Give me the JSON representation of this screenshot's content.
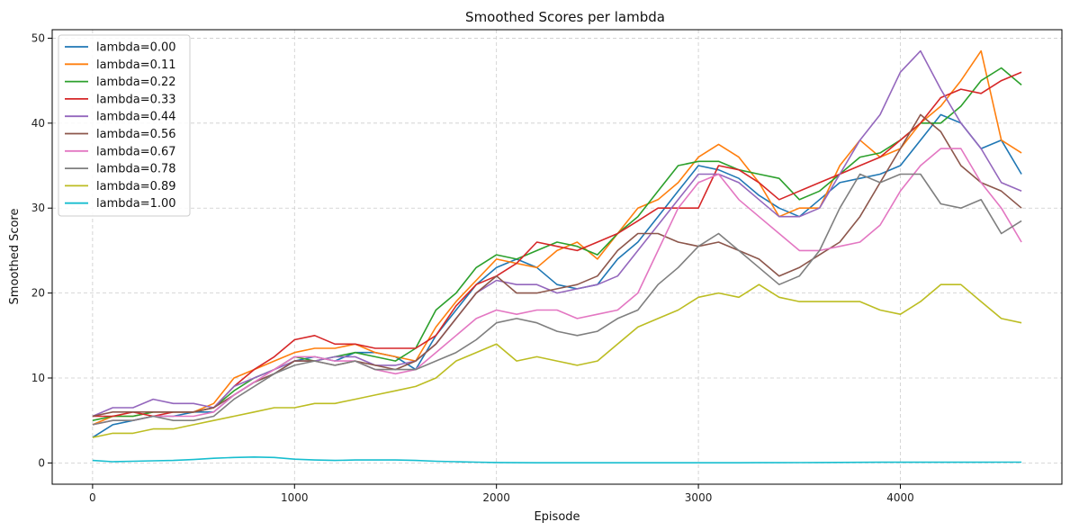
{
  "chart_data": {
    "type": "line",
    "title": "Smoothed Scores per lambda",
    "xlabel": "Episode",
    "ylabel": "Smoothed Score",
    "xlim": [
      -200,
      4800
    ],
    "ylim": [
      -2.5,
      51
    ],
    "xticks": [
      0,
      1000,
      2000,
      3000,
      4000
    ],
    "yticks": [
      0,
      10,
      20,
      30,
      40,
      50
    ],
    "grid": true,
    "legend_position": "top-left",
    "series": [
      {
        "name": "lambda=0.00",
        "color": "#1f77b4",
        "x": [
          0,
          100,
          200,
          300,
          400,
          500,
          600,
          700,
          800,
          900,
          1000,
          1100,
          1200,
          1300,
          1400,
          1500,
          1600,
          1700,
          1800,
          1900,
          2000,
          2100,
          2200,
          2300,
          2400,
          2500,
          2600,
          2700,
          2800,
          2900,
          3000,
          3100,
          3200,
          3300,
          3400,
          3500,
          3600,
          3700,
          3800,
          3900,
          4000,
          4100,
          4200,
          4300,
          4400,
          4500,
          4600
        ],
        "y": [
          3,
          4.5,
          5,
          5.5,
          5.5,
          6,
          6,
          8,
          9.5,
          10.5,
          12,
          12.5,
          12,
          13,
          13,
          12.5,
          11,
          15,
          18,
          21,
          23,
          24,
          23,
          21,
          20.5,
          21,
          24,
          26,
          29,
          32,
          35,
          34.5,
          33.5,
          31.5,
          30,
          29,
          31,
          33,
          33.5,
          34,
          35,
          38,
          41,
          40,
          37,
          38,
          34
        ]
      },
      {
        "name": "lambda=0.11",
        "color": "#ff7f0e",
        "x": [
          0,
          100,
          200,
          300,
          400,
          500,
          600,
          700,
          800,
          900,
          1000,
          1100,
          1200,
          1300,
          1400,
          1500,
          1600,
          1700,
          1800,
          1900,
          2000,
          2100,
          2200,
          2300,
          2400,
          2500,
          2600,
          2700,
          2800,
          2900,
          3000,
          3100,
          3200,
          3300,
          3400,
          3500,
          3600,
          3700,
          3800,
          3900,
          4000,
          4100,
          4200,
          4300,
          4400,
          4500,
          4600
        ],
        "y": [
          4.5,
          5.5,
          5.5,
          6,
          6,
          6,
          7,
          10,
          11,
          12,
          13,
          13.5,
          13.5,
          14,
          13,
          12.5,
          12,
          16,
          19,
          21.5,
          24,
          23.5,
          23,
          25,
          26,
          24,
          27,
          30,
          31,
          33,
          36,
          37.5,
          36,
          33,
          29,
          30,
          30,
          35,
          38,
          36,
          37,
          40,
          42,
          45,
          48.5,
          38,
          36.5
        ]
      },
      {
        "name": "lambda=0.22",
        "color": "#2ca02c",
        "x": [
          0,
          100,
          200,
          300,
          400,
          500,
          600,
          700,
          800,
          900,
          1000,
          1100,
          1200,
          1300,
          1400,
          1500,
          1600,
          1700,
          1800,
          1900,
          2000,
          2100,
          2200,
          2300,
          2400,
          2500,
          2600,
          2700,
          2800,
          2900,
          3000,
          3100,
          3200,
          3300,
          3400,
          3500,
          3600,
          3700,
          3800,
          3900,
          4000,
          4100,
          4200,
          4300,
          4400,
          4500,
          4600
        ],
        "y": [
          5,
          5.5,
          5.5,
          6,
          6,
          6,
          6.5,
          8.5,
          10,
          11,
          12.5,
          12,
          12.5,
          13,
          12.5,
          12,
          13.5,
          18,
          20,
          23,
          24.5,
          24,
          25,
          26,
          25.5,
          24.5,
          27,
          29,
          32,
          35,
          35.5,
          35.5,
          34.5,
          34,
          33.5,
          31,
          32,
          34,
          36,
          36.5,
          38,
          40,
          40,
          42,
          45,
          46.5,
          44.5
        ]
      },
      {
        "name": "lambda=0.33",
        "color": "#d62728",
        "x": [
          0,
          100,
          200,
          300,
          400,
          500,
          600,
          700,
          800,
          900,
          1000,
          1100,
          1200,
          1300,
          1400,
          1500,
          1600,
          1700,
          1800,
          1900,
          2000,
          2100,
          2200,
          2300,
          2400,
          2500,
          2600,
          2700,
          2800,
          2900,
          3000,
          3100,
          3200,
          3300,
          3400,
          3500,
          3600,
          3700,
          3800,
          3900,
          4000,
          4100,
          4200,
          4300,
          4400,
          4500,
          4600
        ],
        "y": [
          5.5,
          5.5,
          6,
          5.5,
          6,
          6,
          6.5,
          9,
          11,
          12.5,
          14.5,
          15,
          14,
          14,
          13.5,
          13.5,
          13.5,
          15,
          18.5,
          21,
          22,
          23.5,
          26,
          25.5,
          25,
          26,
          27,
          28.5,
          30,
          30,
          30,
          35,
          34.5,
          33,
          31,
          32,
          33,
          34,
          35,
          36,
          38,
          40,
          43,
          44,
          43.5,
          45,
          46
        ]
      },
      {
        "name": "lambda=0.44",
        "color": "#9467bd",
        "x": [
          0,
          100,
          200,
          300,
          400,
          500,
          600,
          700,
          800,
          900,
          1000,
          1100,
          1200,
          1300,
          1400,
          1500,
          1600,
          1700,
          1800,
          1900,
          2000,
          2100,
          2200,
          2300,
          2400,
          2500,
          2600,
          2700,
          2800,
          2900,
          3000,
          3100,
          3200,
          3300,
          3400,
          3500,
          3600,
          3700,
          3800,
          3900,
          4000,
          4100,
          4200,
          4300,
          4400,
          4500,
          4600
        ],
        "y": [
          5.5,
          6.5,
          6.5,
          7.5,
          7,
          7,
          6.5,
          9,
          10,
          11,
          12,
          12,
          12.5,
          12.5,
          11.5,
          11.5,
          12,
          14,
          17,
          20,
          21.5,
          21,
          21,
          20,
          20.5,
          21,
          22,
          25,
          28,
          31,
          34,
          34,
          33,
          31,
          29,
          29,
          30,
          34,
          38,
          41,
          46,
          48.5,
          44,
          40,
          37,
          33,
          32
        ]
      },
      {
        "name": "lambda=0.56",
        "color": "#8c564b",
        "x": [
          0,
          100,
          200,
          300,
          400,
          500,
          600,
          700,
          800,
          900,
          1000,
          1100,
          1200,
          1300,
          1400,
          1500,
          1600,
          1700,
          1800,
          1900,
          2000,
          2100,
          2200,
          2300,
          2400,
          2500,
          2600,
          2700,
          2800,
          2900,
          3000,
          3100,
          3200,
          3300,
          3400,
          3500,
          3600,
          3700,
          3800,
          3900,
          4000,
          4100,
          4200,
          4300,
          4400,
          4500,
          4600
        ],
        "y": [
          5.5,
          6,
          6,
          6,
          6,
          6,
          6.5,
          8,
          9.5,
          10.5,
          12,
          12,
          11.5,
          12,
          11.5,
          11,
          12,
          14,
          17,
          20,
          22,
          20,
          20,
          20.5,
          21,
          22,
          25,
          27,
          27,
          26,
          25.5,
          26,
          25,
          24,
          22,
          23,
          24.5,
          26,
          29,
          33,
          37,
          41,
          39,
          35,
          33,
          32,
          30
        ]
      },
      {
        "name": "lambda=0.67",
        "color": "#e377c2",
        "x": [
          0,
          100,
          200,
          300,
          400,
          500,
          600,
          700,
          800,
          900,
          1000,
          1100,
          1200,
          1300,
          1400,
          1500,
          1600,
          1700,
          1800,
          1900,
          2000,
          2100,
          2200,
          2300,
          2400,
          2500,
          2600,
          2700,
          2800,
          2900,
          3000,
          3100,
          3200,
          3300,
          3400,
          3500,
          3600,
          3700,
          3800,
          3900,
          4000,
          4100,
          4200,
          4300,
          4400,
          4500,
          4600
        ],
        "y": [
          4.5,
          5,
          5,
          5.5,
          5.5,
          5.5,
          6,
          8,
          9.5,
          11,
          12.5,
          12.5,
          12,
          12,
          11,
          10.5,
          11,
          13,
          15,
          17,
          18,
          17.5,
          18,
          18,
          17,
          17.5,
          18,
          20,
          25,
          30,
          33,
          34,
          31,
          29,
          27,
          25,
          25,
          25.5,
          26,
          28,
          32,
          35,
          37,
          37,
          33,
          30,
          26
        ]
      },
      {
        "name": "lambda=0.78",
        "color": "#7f7f7f",
        "x": [
          0,
          100,
          200,
          300,
          400,
          500,
          600,
          700,
          800,
          900,
          1000,
          1100,
          1200,
          1300,
          1400,
          1500,
          1600,
          1700,
          1800,
          1900,
          2000,
          2100,
          2200,
          2300,
          2400,
          2500,
          2600,
          2700,
          2800,
          2900,
          3000,
          3100,
          3200,
          3300,
          3400,
          3500,
          3600,
          3700,
          3800,
          3900,
          4000,
          4100,
          4200,
          4300,
          4400,
          4500,
          4600
        ],
        "y": [
          4.5,
          5,
          5,
          5.5,
          5,
          5,
          5.5,
          7.5,
          9,
          10.5,
          11.5,
          12,
          11.5,
          12,
          11,
          11,
          11,
          12,
          13,
          14.5,
          16.5,
          17,
          16.5,
          15.5,
          15,
          15.5,
          17,
          18,
          21,
          23,
          25.5,
          27,
          25,
          23,
          21,
          22,
          25,
          30,
          34,
          33,
          34,
          34,
          30.5,
          30,
          31,
          27,
          28.5
        ]
      },
      {
        "name": "lambda=0.89",
        "color": "#bcbd22",
        "x": [
          0,
          100,
          200,
          300,
          400,
          500,
          600,
          700,
          800,
          900,
          1000,
          1100,
          1200,
          1300,
          1400,
          1500,
          1600,
          1700,
          1800,
          1900,
          2000,
          2100,
          2200,
          2300,
          2400,
          2500,
          2600,
          2700,
          2800,
          2900,
          3000,
          3100,
          3200,
          3300,
          3400,
          3500,
          3600,
          3700,
          3800,
          3900,
          4000,
          4100,
          4200,
          4300,
          4400,
          4500,
          4600
        ],
        "y": [
          3,
          3.5,
          3.5,
          4,
          4,
          4.5,
          5,
          5.5,
          6,
          6.5,
          6.5,
          7,
          7,
          7.5,
          8,
          8.5,
          9,
          10,
          12,
          13,
          14,
          12,
          12.5,
          12,
          11.5,
          12,
          14,
          16,
          17,
          18,
          19.5,
          20,
          19.5,
          21,
          19.5,
          19,
          19,
          19,
          19,
          18,
          17.5,
          19,
          21,
          21,
          19,
          17,
          16.5
        ]
      },
      {
        "name": "lambda=1.00",
        "color": "#17becf",
        "x": [
          0,
          100,
          200,
          300,
          400,
          500,
          600,
          700,
          800,
          900,
          1000,
          1100,
          1200,
          1300,
          1400,
          1500,
          1600,
          1700,
          1800,
          1900,
          2000,
          2100,
          2200,
          2300,
          2400,
          2500,
          2600,
          2700,
          2800,
          2900,
          3000,
          3100,
          3200,
          3300,
          3400,
          3500,
          3600,
          3700,
          3800,
          3900,
          4000,
          4100,
          4200,
          4300,
          4400,
          4500,
          4600
        ],
        "y": [
          0.3,
          0.15,
          0.2,
          0.25,
          0.3,
          0.4,
          0.55,
          0.65,
          0.7,
          0.65,
          0.45,
          0.35,
          0.3,
          0.35,
          0.35,
          0.35,
          0.3,
          0.2,
          0.15,
          0.1,
          0.05,
          0.03,
          0.02,
          0.02,
          0.02,
          0.02,
          0.02,
          0.02,
          0.02,
          0.02,
          0.02,
          0.02,
          0.02,
          0.03,
          0.03,
          0.04,
          0.05,
          0.06,
          0.07,
          0.08,
          0.08,
          0.08,
          0.08,
          0.09,
          0.09,
          0.1,
          0.1
        ]
      }
    ]
  }
}
